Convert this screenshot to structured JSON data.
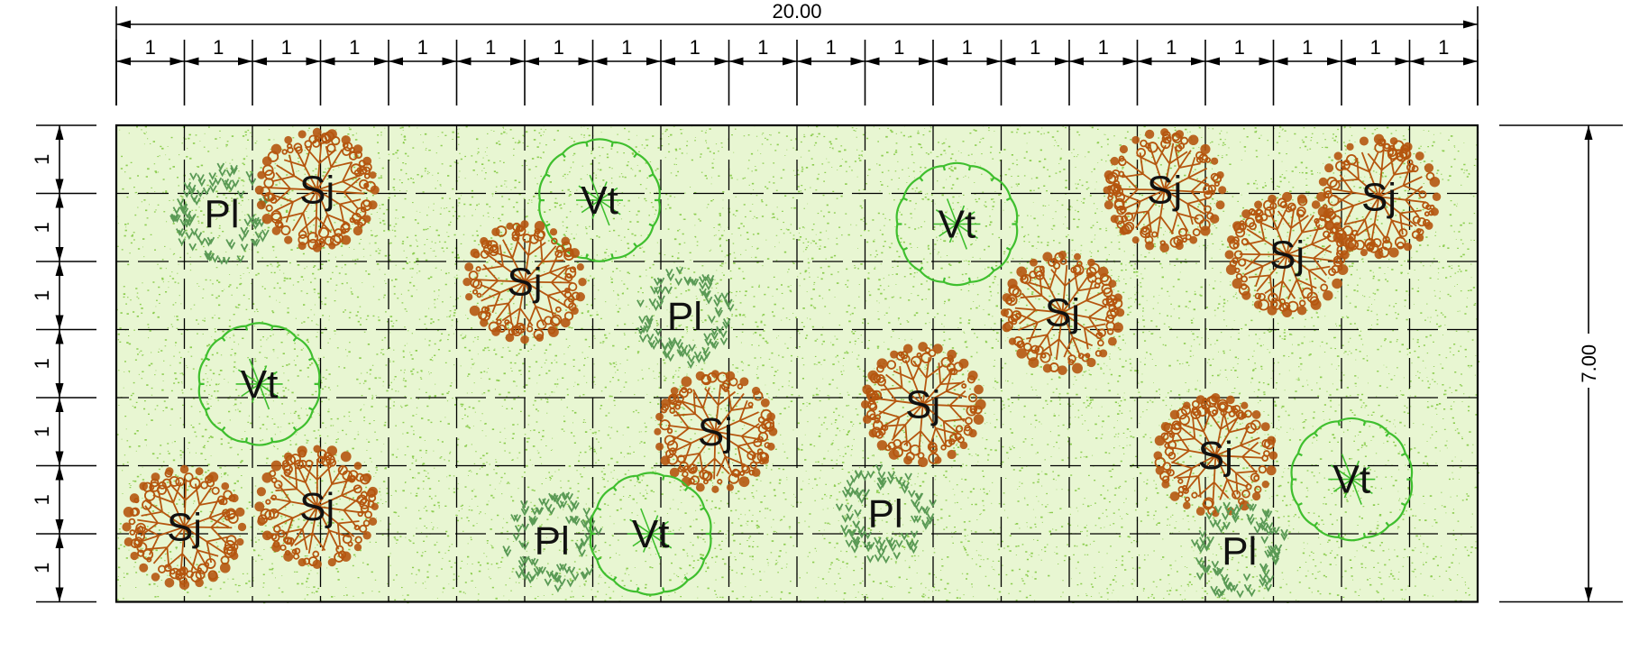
{
  "dimensions": {
    "total_width_label": "20.00",
    "total_height_label": "7.00",
    "column_labels": [
      "1",
      "1",
      "1",
      "1",
      "1",
      "1",
      "1",
      "1",
      "1",
      "1",
      "1",
      "1",
      "1",
      "1",
      "1",
      "1",
      "1",
      "1",
      "1",
      "1"
    ],
    "row_labels": [
      "1",
      "1",
      "1",
      "1",
      "1",
      "1",
      "1"
    ]
  },
  "plan": {
    "width_units": 20,
    "height_units": 7,
    "grid": true,
    "ground_color": "#e8f6d2",
    "speckle_color": "#7cc63a"
  },
  "symbols": {
    "Sj": {
      "label": "Sj",
      "color": "#b5560f",
      "icon": "tree-canopy-icon"
    },
    "Vt": {
      "label": "Vt",
      "color": "#3fbf2e",
      "icon": "shrub-outline-icon"
    },
    "Pl": {
      "label": "Pl",
      "color": "#5a9a55",
      "icon": "groundcover-icon"
    }
  },
  "plants": [
    {
      "type": "Pl",
      "label": "Pl",
      "x": 1.55,
      "y": 1.3
    },
    {
      "type": "Sj",
      "label": "Sj",
      "x": 2.95,
      "y": 0.95
    },
    {
      "type": "Vt",
      "label": "Vt",
      "x": 7.1,
      "y": 1.1
    },
    {
      "type": "Sj",
      "label": "Sj",
      "x": 6.0,
      "y": 2.3
    },
    {
      "type": "Pl",
      "label": "Pl",
      "x": 8.35,
      "y": 2.8
    },
    {
      "type": "Vt",
      "label": "Vt",
      "x": 12.35,
      "y": 1.45
    },
    {
      "type": "Sj",
      "label": "Sj",
      "x": 15.4,
      "y": 0.95
    },
    {
      "type": "Sj",
      "label": "Sj",
      "x": 18.55,
      "y": 1.05
    },
    {
      "type": "Sj",
      "label": "Sj",
      "x": 17.2,
      "y": 1.9
    },
    {
      "type": "Sj",
      "label": "Sj",
      "x": 13.9,
      "y": 2.75
    },
    {
      "type": "Vt",
      "label": "Vt",
      "x": 2.1,
      "y": 3.8
    },
    {
      "type": "Sj",
      "label": "Sj",
      "x": 8.8,
      "y": 4.5
    },
    {
      "type": "Sj",
      "label": "Sj",
      "x": 11.85,
      "y": 4.1
    },
    {
      "type": "Sj",
      "label": "Sj",
      "x": 1.0,
      "y": 5.9
    },
    {
      "type": "Sj",
      "label": "Sj",
      "x": 2.95,
      "y": 5.6
    },
    {
      "type": "Pl",
      "label": "Pl",
      "x": 6.4,
      "y": 6.1
    },
    {
      "type": "Vt",
      "label": "Vt",
      "x": 7.85,
      "y": 6.0
    },
    {
      "type": "Pl",
      "label": "Pl",
      "x": 11.3,
      "y": 5.7
    },
    {
      "type": "Sj",
      "label": "Sj",
      "x": 16.15,
      "y": 4.85
    },
    {
      "type": "Vt",
      "label": "Vt",
      "x": 18.15,
      "y": 5.2
    },
    {
      "type": "Pl",
      "label": "Pl",
      "x": 16.5,
      "y": 6.25
    }
  ]
}
